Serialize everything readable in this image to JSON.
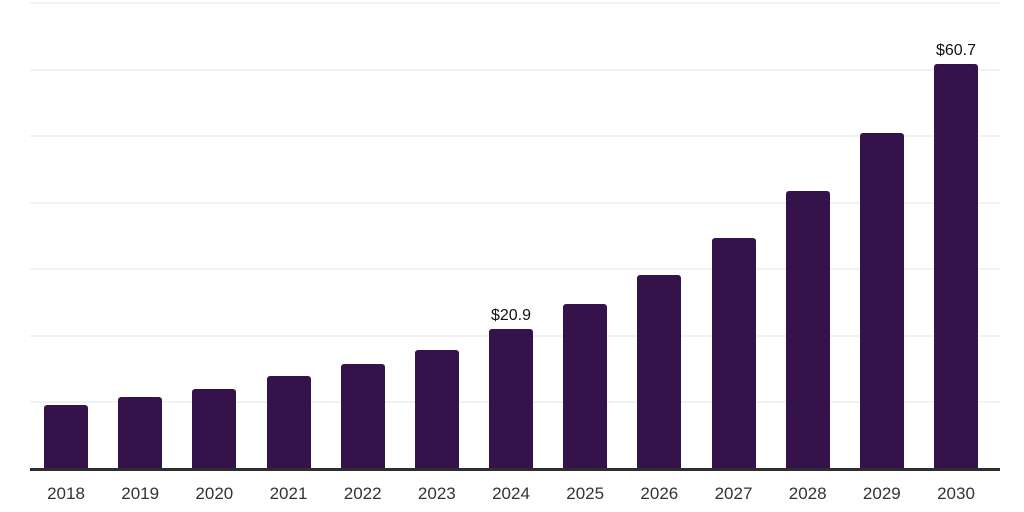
{
  "chart_data": {
    "type": "bar",
    "title": "",
    "xlabel": "",
    "ylabel": "",
    "categories": [
      "2018",
      "2019",
      "2020",
      "2021",
      "2022",
      "2023",
      "2024",
      "2025",
      "2026",
      "2027",
      "2028",
      "2029",
      "2030"
    ],
    "values": [
      9.4,
      10.7,
      11.9,
      13.8,
      15.6,
      17.7,
      20.9,
      24.6,
      29.0,
      34.6,
      41.6,
      50.3,
      60.7
    ],
    "data_labels": [
      {
        "category": "2024",
        "text": "$20.9"
      },
      {
        "category": "2030",
        "text": "$60.7"
      }
    ],
    "ylim": [
      0,
      70
    ],
    "gridline_interval": 10,
    "grid": true,
    "legend": false,
    "y_axis_labels_visible": false,
    "colors": {
      "bar": "#351249",
      "axis": "#2e2e2e",
      "gridline": "#f1f2f4",
      "data_label": "#111111",
      "tick_label": "#333333",
      "background": "#ffffff"
    }
  }
}
